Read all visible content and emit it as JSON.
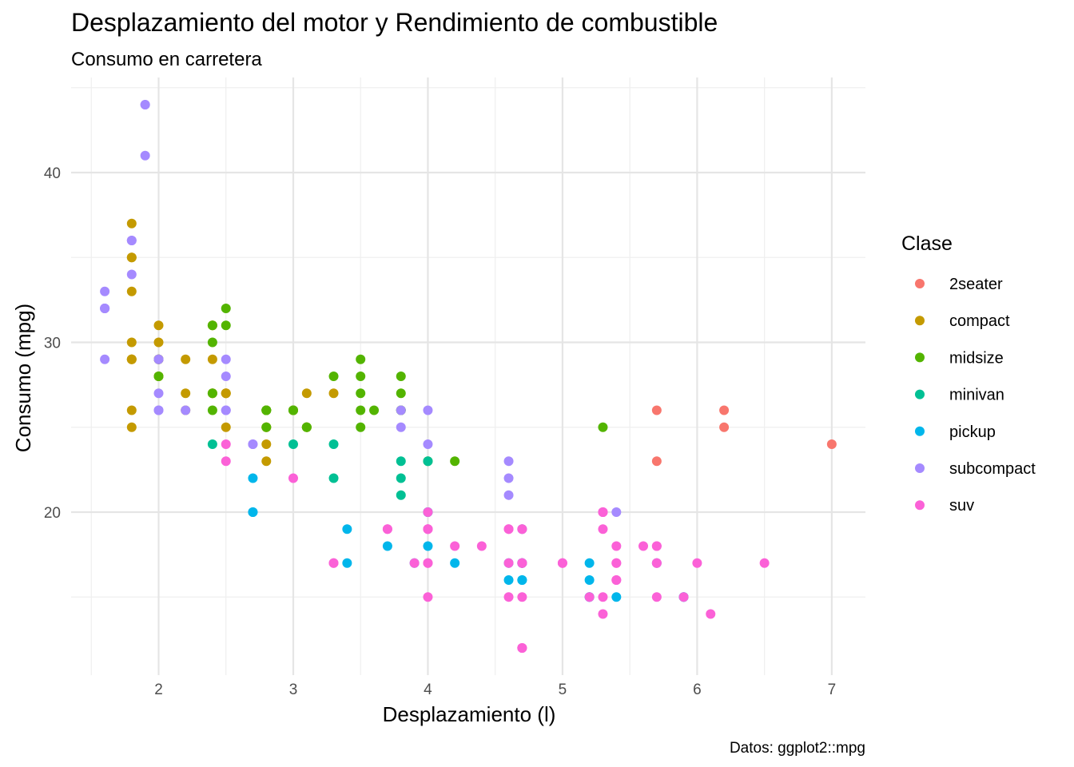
{
  "chart_data": {
    "type": "scatter",
    "title": "Desplazamiento del motor y Rendimiento de combustible",
    "subtitle": "Consumo en carretera",
    "xlabel": "Desplazamiento (l)",
    "ylabel": "Consumo (mpg)",
    "caption": "Datos: ggplot2::mpg",
    "xlim": [
      1.35,
      7.25
    ],
    "ylim": [
      10.4,
      45.6
    ],
    "x_ticks": [
      2,
      3,
      4,
      5,
      6,
      7
    ],
    "y_ticks": [
      20,
      30,
      40
    ],
    "grid": true,
    "legend": {
      "title": "Clase",
      "position": "right"
    },
    "series": [
      {
        "name": "2seater",
        "color": "#F8766D",
        "points": [
          [
            5.7,
            26
          ],
          [
            5.7,
            23
          ],
          [
            6.2,
            26
          ],
          [
            6.2,
            25
          ],
          [
            7.0,
            24
          ]
        ]
      },
      {
        "name": "compact",
        "color": "#C49A00",
        "points": [
          [
            1.8,
            29
          ],
          [
            1.8,
            29
          ],
          [
            2.0,
            31
          ],
          [
            2.0,
            30
          ],
          [
            2.8,
            26
          ],
          [
            2.8,
            26
          ],
          [
            3.1,
            27
          ],
          [
            1.8,
            26
          ],
          [
            1.8,
            25
          ],
          [
            2.0,
            28
          ],
          [
            2.0,
            29
          ],
          [
            2.8,
            25
          ],
          [
            2.8,
            25
          ],
          [
            3.1,
            25
          ],
          [
            3.1,
            25
          ],
          [
            2.2,
            26
          ],
          [
            2.2,
            29
          ],
          [
            2.4,
            27
          ],
          [
            2.4,
            31
          ],
          [
            3.0,
            26
          ],
          [
            3.0,
            26
          ],
          [
            3.3,
            27
          ],
          [
            1.8,
            33
          ],
          [
            1.8,
            35
          ],
          [
            1.8,
            37
          ],
          [
            1.8,
            35
          ],
          [
            1.8,
            29
          ],
          [
            1.8,
            30
          ],
          [
            2.4,
            27
          ],
          [
            2.4,
            29
          ],
          [
            2.5,
            27
          ],
          [
            2.5,
            27
          ],
          [
            2.5,
            27
          ],
          [
            2.8,
            24
          ],
          [
            2.8,
            23
          ],
          [
            2.0,
            28
          ],
          [
            2.0,
            29
          ],
          [
            2.0,
            29
          ],
          [
            2.0,
            29
          ],
          [
            2.0,
            29
          ],
          [
            2.2,
            27
          ],
          [
            2.4,
            31
          ],
          [
            2.5,
            25
          ]
        ]
      },
      {
        "name": "midsize",
        "color": "#53B400",
        "points": [
          [
            2.8,
            26
          ],
          [
            2.8,
            26
          ],
          [
            3.1,
            25
          ],
          [
            2.4,
            30
          ],
          [
            2.4,
            26
          ],
          [
            2.5,
            32
          ],
          [
            2.5,
            31
          ],
          [
            3.3,
            28
          ],
          [
            3.5,
            29
          ],
          [
            3.5,
            27
          ],
          [
            3.8,
            26
          ],
          [
            3.8,
            27
          ],
          [
            3.8,
            28
          ],
          [
            3.5,
            26
          ],
          [
            3.6,
            26
          ],
          [
            2.4,
            27
          ],
          [
            3.0,
            26
          ],
          [
            3.5,
            25
          ],
          [
            3.5,
            28
          ],
          [
            4.0,
            23
          ],
          [
            4.2,
            23
          ],
          [
            5.3,
            25
          ],
          [
            2.8,
            25
          ],
          [
            3.0,
            26
          ],
          [
            3.8,
            26
          ],
          [
            2.0,
            28
          ],
          [
            2.0,
            29
          ],
          [
            2.4,
            31
          ],
          [
            2.8,
            26
          ],
          [
            3.1,
            25
          ]
        ]
      },
      {
        "name": "minivan",
        "color": "#00C094",
        "points": [
          [
            2.4,
            24
          ],
          [
            3.0,
            24
          ],
          [
            3.3,
            22
          ],
          [
            3.3,
            24
          ],
          [
            3.8,
            22
          ],
          [
            3.8,
            21
          ],
          [
            3.8,
            23
          ],
          [
            4.0,
            23
          ]
        ]
      },
      {
        "name": "pickup",
        "color": "#00B6EB",
        "points": [
          [
            2.7,
            20
          ],
          [
            2.7,
            22
          ],
          [
            2.7,
            20
          ],
          [
            3.4,
            17
          ],
          [
            3.4,
            19
          ],
          [
            4.0,
            20
          ],
          [
            4.0,
            18
          ],
          [
            4.7,
            17
          ],
          [
            4.7,
            16
          ],
          [
            4.7,
            19
          ],
          [
            5.2,
            16
          ],
          [
            5.2,
            17
          ],
          [
            5.7,
            17
          ],
          [
            5.9,
            15
          ],
          [
            4.6,
            17
          ],
          [
            5.4,
            15
          ],
          [
            4.7,
            16
          ],
          [
            4.7,
            17
          ],
          [
            5.2,
            15
          ],
          [
            3.7,
            18
          ],
          [
            4.2,
            17
          ],
          [
            4.6,
            16
          ],
          [
            3.9,
            17
          ],
          [
            4.0,
            20
          ],
          [
            4.7,
            17
          ],
          [
            5.2,
            15
          ],
          [
            5.9,
            15
          ],
          [
            4.7,
            17
          ]
        ]
      },
      {
        "name": "subcompact",
        "color": "#A58AFF",
        "points": [
          [
            3.8,
            25
          ],
          [
            3.8,
            26
          ],
          [
            4.0,
            24
          ],
          [
            4.0,
            26
          ],
          [
            4.6,
            21
          ],
          [
            4.6,
            22
          ],
          [
            4.6,
            23
          ],
          [
            5.4,
            20
          ],
          [
            1.6,
            32
          ],
          [
            1.6,
            33
          ],
          [
            1.6,
            32
          ],
          [
            1.6,
            29
          ],
          [
            1.6,
            32
          ],
          [
            1.8,
            34
          ],
          [
            1.8,
            36
          ],
          [
            1.8,
            36
          ],
          [
            2.0,
            29
          ],
          [
            2.0,
            26
          ],
          [
            2.0,
            27
          ],
          [
            2.7,
            24
          ],
          [
            2.7,
            24
          ],
          [
            2.5,
            26
          ],
          [
            2.5,
            28
          ],
          [
            2.5,
            29
          ],
          [
            1.9,
            44
          ],
          [
            1.9,
            44
          ],
          [
            2.0,
            29
          ],
          [
            2.0,
            26
          ],
          [
            2.5,
            26
          ],
          [
            1.9,
            41
          ],
          [
            2.2,
            26
          ]
        ]
      },
      {
        "name": "suv",
        "color": "#FB61D7",
        "points": [
          [
            5.3,
            20
          ],
          [
            5.3,
            15
          ],
          [
            5.3,
            20
          ],
          [
            5.7,
            17
          ],
          [
            6.5,
            17
          ],
          [
            3.7,
            19
          ],
          [
            3.7,
            19
          ],
          [
            3.9,
            17
          ],
          [
            4.7,
            19
          ],
          [
            4.7,
            17
          ],
          [
            4.7,
            12
          ],
          [
            5.2,
            15
          ],
          [
            5.7,
            17
          ],
          [
            5.9,
            15
          ],
          [
            4.0,
            20
          ],
          [
            4.0,
            17
          ],
          [
            4.0,
            19
          ],
          [
            4.6,
            19
          ],
          [
            4.6,
            17
          ],
          [
            5.4,
            17
          ],
          [
            5.4,
            18
          ],
          [
            5.4,
            16
          ],
          [
            4.0,
            15
          ],
          [
            4.7,
            12
          ],
          [
            5.7,
            18
          ],
          [
            6.1,
            14
          ],
          [
            5.3,
            20
          ],
          [
            5.4,
            17
          ],
          [
            4.2,
            18
          ],
          [
            4.4,
            18
          ],
          [
            4.6,
            19
          ],
          [
            4.7,
            12
          ],
          [
            5.3,
            14
          ],
          [
            5.7,
            15
          ],
          [
            6.0,
            17
          ],
          [
            2.5,
            24
          ],
          [
            2.5,
            23
          ],
          [
            3.3,
            17
          ],
          [
            3.3,
            17
          ],
          [
            4.0,
            19
          ],
          [
            4.0,
            17
          ],
          [
            4.7,
            17
          ],
          [
            4.7,
            15
          ],
          [
            5.0,
            17
          ],
          [
            5.6,
            18
          ],
          [
            4.6,
            15
          ],
          [
            5.4,
            16
          ],
          [
            3.0,
            22
          ],
          [
            4.7,
            19
          ],
          [
            5.0,
            17
          ],
          [
            5.7,
            18
          ],
          [
            4.7,
            17
          ],
          [
            5.3,
            19
          ],
          [
            4.0,
            19
          ]
        ]
      }
    ]
  }
}
